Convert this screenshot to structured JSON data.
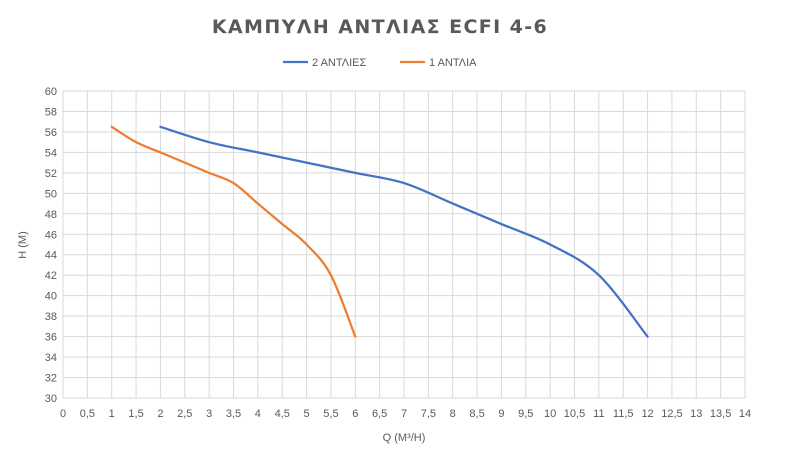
{
  "chart_data": {
    "type": "line",
    "title": "ΚΑΜΠΥΛΗ ΑΝΤΛΙΑΣ ECFI 4-6",
    "xlabel": "Q (M³/H)",
    "ylabel": "H (M)",
    "xlim": [
      0,
      14
    ],
    "ylim": [
      30,
      60
    ],
    "x_ticks": [
      "0",
      "0,5",
      "1",
      "1,5",
      "2",
      "2,5",
      "3",
      "3,5",
      "4",
      "4,5",
      "5",
      "5,5",
      "6",
      "6,5",
      "7",
      "7,5",
      "8",
      "8,5",
      "9",
      "9,5",
      "10",
      "10,5",
      "11",
      "11,5",
      "12",
      "12,5",
      "13",
      "13,5",
      "14"
    ],
    "y_ticks": [
      "30",
      "32",
      "34",
      "36",
      "38",
      "40",
      "42",
      "44",
      "46",
      "48",
      "50",
      "52",
      "54",
      "56",
      "58",
      "60"
    ],
    "grid": true,
    "legend_position": "top",
    "series": [
      {
        "name": "2 ΑΝΤΛΙΕΣ",
        "color": "#4472c4",
        "points": [
          [
            2,
            56.5
          ],
          [
            3,
            55
          ],
          [
            4,
            54
          ],
          [
            5,
            53
          ],
          [
            6,
            52
          ],
          [
            7,
            51
          ],
          [
            8,
            49
          ],
          [
            9,
            47
          ],
          [
            10,
            45
          ],
          [
            11,
            42
          ],
          [
            12,
            36
          ]
        ]
      },
      {
        "name": "1 ΑΝΤΛΙΑ",
        "color": "#ed7d31",
        "points": [
          [
            1,
            56.5
          ],
          [
            1.5,
            55
          ],
          [
            2,
            54
          ],
          [
            2.5,
            53
          ],
          [
            3,
            52
          ],
          [
            3.5,
            51
          ],
          [
            4,
            49
          ],
          [
            4.5,
            47
          ],
          [
            5,
            45
          ],
          [
            5.5,
            42
          ],
          [
            6,
            36
          ]
        ]
      }
    ]
  }
}
